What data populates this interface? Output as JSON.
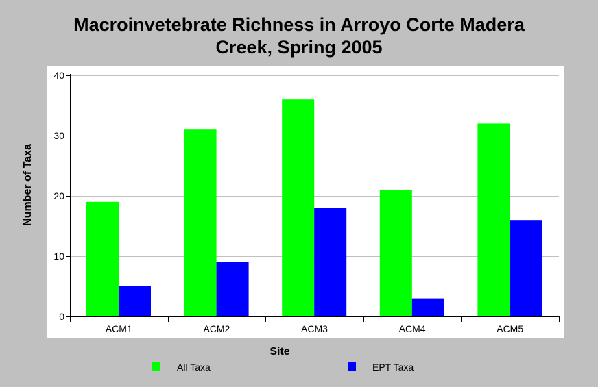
{
  "chart_data": {
    "type": "bar",
    "title_lines": [
      "Macroinvetebrate Richness in Arroyo Corte Madera",
      "Creek, Spring 2005"
    ],
    "xlabel": "Site",
    "ylabel": "Number of Taxa",
    "categories": [
      "ACM1",
      "ACM2",
      "ACM3",
      "ACM4",
      "ACM5"
    ],
    "series": [
      {
        "name": "All Taxa",
        "color": "#00ff00",
        "values": [
          19,
          31,
          36,
          21,
          32
        ]
      },
      {
        "name": "EPT Taxa",
        "color": "#0000ff",
        "values": [
          5,
          9,
          18,
          3,
          16
        ]
      }
    ],
    "ylim": [
      0,
      40
    ],
    "yticks": [
      0,
      10,
      20,
      30,
      40
    ],
    "grid": true,
    "legend_position": "bottom"
  },
  "colors": {
    "background": "#c0c0c0",
    "plot_background": "#ffffff",
    "gridline": "#c0c0c0"
  }
}
